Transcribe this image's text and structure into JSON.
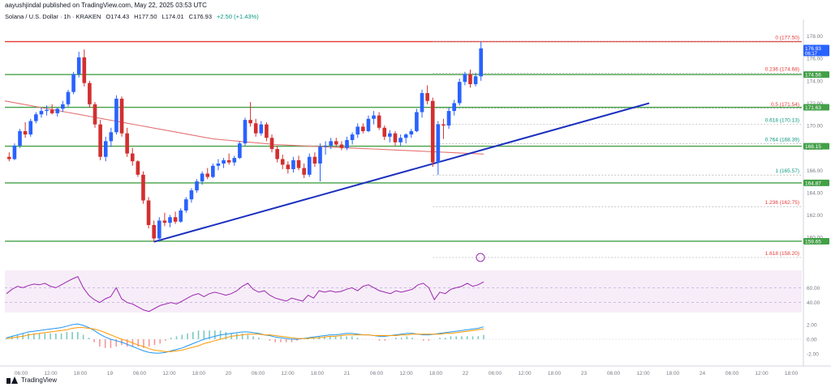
{
  "header": {
    "publisher": "aayushjindal published on TradingView.com, May 22, 2025 03:53 UTC"
  },
  "symbol": {
    "name": "Solana / U.S. Dollar · 1h · KRAKEN",
    "open": "O174.43",
    "high": "H177.50",
    "low": "L174.01",
    "close": "C176.93",
    "change": "+2.50 (+1.43%)"
  },
  "footer": {
    "brand": "TradingView"
  },
  "colors": {
    "up": "#2962ff",
    "down": "#d32f2f",
    "support": "#43a047",
    "resistance": "#e53935",
    "trendline": "#1a2fbf",
    "ma": "#e57373",
    "rsi": "#9c27b0",
    "macd": "#2196f3",
    "signal": "#ff9800"
  },
  "chart_data": {
    "type": "candlestick",
    "timeframe": "1h",
    "y_range": [
      158.2,
      179.2
    ],
    "price_ticks": [
      "178.00",
      "176.00",
      "174.00",
      "172.00",
      "170.00",
      "168.00",
      "166.00",
      "164.00",
      "162.00",
      "160.00"
    ],
    "x_tick_labels": [
      "06:00",
      "12:00",
      "18:00",
      "19",
      "06:00",
      "12:00",
      "18:00",
      "20",
      "06:00",
      "12:00",
      "18:00",
      "21",
      "06:00",
      "12:00",
      "18:00",
      "22",
      "06:00",
      "12:00",
      "18:00",
      "23",
      "06:00",
      "12:00",
      "18:00",
      "24",
      "06:00",
      "12:00",
      "18:00"
    ],
    "price_badges": [
      {
        "value": "176.93",
        "sub": "06:17",
        "color": "#2962ff"
      },
      {
        "value": "174.56",
        "color": "#43a047"
      },
      {
        "value": "171.63",
        "color": "#43a047"
      },
      {
        "value": "168.15",
        "color": "#43a047"
      },
      {
        "value": "164.87",
        "color": "#43a047"
      },
      {
        "value": "159.65",
        "color": "#43a047"
      }
    ],
    "horizontal_levels": [
      {
        "price": 177.5,
        "color": "#e53935",
        "role": "resistance"
      },
      {
        "price": 174.56,
        "color": "#43a047",
        "role": "support"
      },
      {
        "price": 171.63,
        "color": "#43a047",
        "role": "support"
      },
      {
        "price": 168.15,
        "color": "#43a047",
        "role": "support"
      },
      {
        "price": 164.87,
        "color": "#43a047",
        "role": "support"
      },
      {
        "price": 159.65,
        "color": "#43a047",
        "role": "support"
      }
    ],
    "fibonacci": [
      {
        "label": "0 (177.50)",
        "price": 177.5
      },
      {
        "label": "0.236 (174.68)",
        "price": 174.68
      },
      {
        "label": "0.5 (171.54)",
        "price": 171.54
      },
      {
        "label": "0.618 (170.13)",
        "price": 170.13
      },
      {
        "label": "0.764 (168.39)",
        "price": 168.39
      },
      {
        "label": "1 (165.57)",
        "price": 165.57
      },
      {
        "label": "1.236 (162.75)",
        "price": 162.75
      },
      {
        "label": "1.618 (158.20)",
        "price": 158.2
      }
    ],
    "trendline": {
      "from": {
        "bar": 0,
        "price": 159.6
      },
      "to": {
        "bar": 5,
        "price": 172.0
      }
    },
    "candles": [
      [
        167.2,
        167.6,
        166.8,
        167.0
      ],
      [
        167.0,
        168.4,
        166.9,
        168.2
      ],
      [
        168.2,
        169.7,
        168.0,
        169.5
      ],
      [
        169.5,
        170.3,
        168.9,
        169.2
      ],
      [
        169.2,
        170.6,
        169.0,
        170.4
      ],
      [
        170.4,
        171.2,
        170.2,
        171.0
      ],
      [
        171.0,
        171.6,
        170.7,
        171.3
      ],
      [
        171.3,
        171.8,
        170.9,
        171.4
      ],
      [
        171.4,
        171.9,
        171.0,
        171.1
      ],
      [
        171.1,
        171.6,
        170.8,
        171.5
      ],
      [
        171.5,
        172.2,
        171.2,
        171.9
      ],
      [
        171.9,
        173.2,
        171.7,
        173.0
      ],
      [
        173.0,
        174.8,
        172.8,
        174.6
      ],
      [
        174.6,
        176.6,
        174.3,
        176.1
      ],
      [
        176.1,
        176.8,
        173.5,
        173.8
      ],
      [
        173.8,
        174.0,
        171.6,
        171.9
      ],
      [
        171.9,
        172.1,
        169.8,
        170.1
      ],
      [
        170.1,
        170.5,
        166.9,
        167.2
      ],
      [
        167.2,
        169.0,
        166.8,
        168.6
      ],
      [
        168.6,
        169.8,
        168.1,
        169.4
      ],
      [
        169.4,
        172.7,
        169.2,
        172.4
      ],
      [
        172.4,
        172.6,
        169.0,
        169.3
      ],
      [
        169.3,
        169.8,
        167.2,
        167.5
      ],
      [
        167.5,
        168.0,
        166.4,
        166.8
      ],
      [
        166.8,
        166.9,
        165.4,
        165.6
      ],
      [
        165.6,
        165.9,
        163.0,
        163.3
      ],
      [
        163.3,
        163.6,
        160.8,
        161.1
      ],
      [
        161.1,
        161.5,
        159.6,
        159.9
      ],
      [
        159.9,
        161.8,
        159.7,
        161.5
      ],
      [
        161.5,
        162.2,
        161.0,
        161.3
      ],
      [
        161.3,
        162.0,
        160.9,
        161.8
      ],
      [
        161.8,
        162.3,
        161.2,
        161.4
      ],
      [
        161.4,
        162.6,
        161.3,
        162.4
      ],
      [
        162.4,
        163.6,
        162.2,
        163.4
      ],
      [
        163.4,
        164.4,
        163.1,
        164.2
      ],
      [
        164.2,
        165.2,
        164.0,
        165.0
      ],
      [
        165.0,
        165.9,
        164.7,
        165.7
      ],
      [
        165.7,
        166.2,
        165.2,
        165.4
      ],
      [
        165.4,
        166.6,
        165.3,
        166.4
      ],
      [
        166.4,
        167.0,
        166.0,
        166.6
      ],
      [
        166.6,
        167.1,
        166.2,
        166.9
      ],
      [
        166.9,
        167.5,
        166.5,
        166.7
      ],
      [
        166.7,
        167.3,
        166.4,
        167.1
      ],
      [
        167.1,
        168.6,
        167.0,
        168.4
      ],
      [
        168.4,
        170.7,
        168.2,
        170.5
      ],
      [
        170.5,
        172.1,
        169.9,
        170.2
      ],
      [
        170.2,
        170.6,
        169.0,
        169.3
      ],
      [
        169.3,
        170.4,
        169.1,
        170.1
      ],
      [
        170.1,
        170.3,
        168.6,
        168.9
      ],
      [
        168.9,
        169.2,
        167.6,
        167.9
      ],
      [
        167.9,
        168.2,
        166.7,
        167.0
      ],
      [
        167.0,
        167.4,
        166.1,
        166.5
      ],
      [
        166.5,
        166.8,
        165.7,
        166.1
      ],
      [
        166.1,
        167.2,
        165.8,
        166.9
      ],
      [
        166.9,
        167.3,
        166.0,
        166.2
      ],
      [
        166.2,
        166.6,
        165.3,
        165.6
      ],
      [
        165.6,
        167.5,
        165.4,
        167.2
      ],
      [
        167.2,
        167.6,
        166.3,
        166.6
      ],
      [
        166.6,
        168.4,
        165.0,
        168.1
      ],
      [
        168.1,
        168.6,
        167.4,
        168.2
      ],
      [
        168.2,
        168.9,
        167.9,
        168.6
      ],
      [
        168.6,
        168.9,
        168.1,
        168.3
      ],
      [
        168.3,
        168.6,
        167.8,
        168.0
      ],
      [
        168.0,
        169.0,
        167.8,
        168.7
      ],
      [
        168.7,
        169.4,
        168.3,
        169.2
      ],
      [
        169.2,
        170.2,
        168.9,
        169.9
      ],
      [
        169.9,
        170.2,
        169.3,
        169.5
      ],
      [
        169.5,
        170.9,
        169.4,
        170.6
      ],
      [
        170.6,
        171.3,
        170.1,
        170.9
      ],
      [
        170.9,
        171.2,
        169.6,
        169.8
      ],
      [
        169.8,
        170.0,
        168.7,
        169.0
      ],
      [
        169.0,
        169.6,
        168.5,
        169.3
      ],
      [
        169.3,
        169.5,
        168.2,
        168.5
      ],
      [
        168.5,
        169.2,
        168.2,
        168.9
      ],
      [
        168.9,
        169.3,
        168.4,
        169.2
      ],
      [
        169.2,
        169.7,
        168.9,
        169.5
      ],
      [
        169.5,
        171.5,
        169.4,
        171.2
      ],
      [
        171.2,
        173.2,
        170.7,
        172.9
      ],
      [
        172.9,
        173.6,
        171.9,
        172.2
      ],
      [
        172.2,
        172.5,
        166.3,
        166.7
      ],
      [
        166.7,
        170.4,
        165.6,
        170.1
      ],
      [
        170.1,
        170.6,
        168.8,
        170.0
      ],
      [
        170.0,
        171.6,
        169.7,
        171.3
      ],
      [
        171.3,
        172.3,
        170.9,
        172.0
      ],
      [
        172.0,
        174.2,
        171.8,
        173.9
      ],
      [
        173.9,
        174.8,
        173.6,
        174.6
      ],
      [
        174.6,
        175.0,
        173.4,
        173.7
      ],
      [
        173.7,
        174.7,
        173.5,
        174.4
      ],
      [
        174.4,
        177.5,
        174.0,
        176.9
      ]
    ],
    "ma_series": [
      172.2,
      172.0,
      171.8,
      171.6,
      171.4,
      171.2,
      171.0,
      170.8,
      170.6,
      170.4,
      170.2,
      170.0,
      169.8,
      169.6,
      169.4,
      169.2,
      169.0,
      168.8,
      168.7,
      168.6,
      168.5,
      168.4,
      168.3,
      168.25,
      168.2,
      168.15,
      168.1,
      168.05,
      168.0,
      167.95,
      167.9,
      167.85,
      167.8,
      167.75,
      167.7,
      167.65,
      167.6,
      167.55,
      167.5,
      167.45
    ],
    "rsi": {
      "panel_levels": [
        60.0,
        40.0
      ],
      "tick_labels": [
        "60.00",
        "40.00"
      ],
      "values": [
        52,
        58,
        62,
        60,
        63,
        65,
        64,
        66,
        62,
        60,
        64,
        68,
        72,
        75,
        60,
        50,
        44,
        40,
        45,
        48,
        60,
        45,
        40,
        38,
        34,
        30,
        28,
        32,
        36,
        38,
        40,
        38,
        42,
        46,
        50,
        52,
        48,
        52,
        54,
        52,
        50,
        52,
        56,
        62,
        66,
        58,
        54,
        56,
        50,
        46,
        44,
        42,
        46,
        44,
        42,
        50,
        46,
        56,
        54,
        56,
        54,
        55,
        58,
        60,
        56,
        62,
        64,
        60,
        56,
        54,
        52,
        56,
        54,
        56,
        58,
        64,
        66,
        60,
        44,
        54,
        52,
        58,
        60,
        62,
        66,
        62,
        64,
        68
      ]
    },
    "macd": {
      "tick_labels": [
        "2.00",
        "0.00",
        "-2.00"
      ],
      "macd_line": [
        0.2,
        0.4,
        0.6,
        0.8,
        1.0,
        1.1,
        1.2,
        1.3,
        1.4,
        1.5,
        1.6,
        1.8,
        2.0,
        2.1,
        1.9,
        1.6,
        1.2,
        0.7,
        0.3,
        0.0,
        -0.2,
        -0.4,
        -0.7,
        -1.0,
        -1.3,
        -1.6,
        -1.8,
        -1.9,
        -1.9,
        -1.8,
        -1.6,
        -1.4,
        -1.2,
        -0.9,
        -0.6,
        -0.3,
        0.0,
        0.2,
        0.4,
        0.6,
        0.7,
        0.8,
        0.9,
        1.0,
        1.0,
        0.9,
        0.8,
        0.6,
        0.5,
        0.3,
        0.2,
        0.1,
        0.0,
        0.0,
        0.1,
        0.2,
        0.3,
        0.4,
        0.5,
        0.6,
        0.6,
        0.7,
        0.8,
        0.8,
        0.7,
        0.6,
        0.6,
        0.5,
        0.4,
        0.4,
        0.5,
        0.6,
        0.7,
        0.8,
        0.8,
        0.7,
        0.6,
        0.6,
        0.7,
        0.8,
        0.9,
        1.0,
        1.1,
        1.2,
        1.3,
        1.4,
        1.5,
        1.7
      ],
      "signal_line": [
        0.1,
        0.2,
        0.3,
        0.4,
        0.6,
        0.7,
        0.8,
        0.9,
        1.0,
        1.1,
        1.2,
        1.3,
        1.5,
        1.6,
        1.6,
        1.5,
        1.4,
        1.2,
        0.9,
        0.6,
        0.3,
        0.0,
        -0.2,
        -0.5,
        -0.8,
        -1.0,
        -1.3,
        -1.5,
        -1.6,
        -1.7,
        -1.7,
        -1.6,
        -1.5,
        -1.3,
        -1.1,
        -0.9,
        -0.6,
        -0.4,
        -0.2,
        0.0,
        0.2,
        0.4,
        0.5,
        0.6,
        0.7,
        0.7,
        0.7,
        0.6,
        0.6,
        0.5,
        0.4,
        0.3,
        0.2,
        0.1,
        0.1,
        0.1,
        0.2,
        0.2,
        0.3,
        0.4,
        0.4,
        0.5,
        0.6,
        0.6,
        0.6,
        0.6,
        0.6,
        0.5,
        0.5,
        0.5,
        0.5,
        0.5,
        0.6,
        0.6,
        0.7,
        0.7,
        0.7,
        0.7,
        0.7,
        0.7,
        0.8,
        0.8,
        0.9,
        1.0,
        1.1,
        1.2,
        1.3,
        1.4
      ]
    }
  }
}
